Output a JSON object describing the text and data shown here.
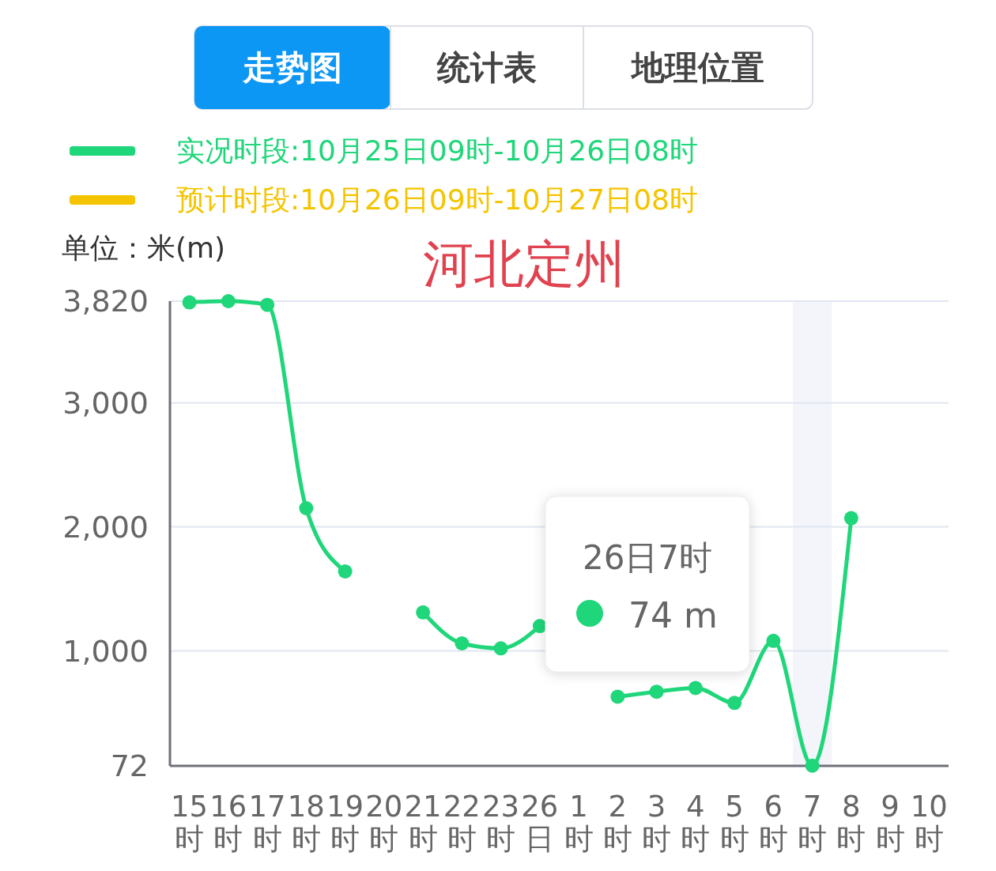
{
  "chart_data": {
    "type": "line",
    "title": "河北定州",
    "ylabel": "单位：米(m)",
    "categories": [
      "15时",
      "16时",
      "17时",
      "18时",
      "19时",
      "20时",
      "21时",
      "22时",
      "23时",
      "26日",
      "1时",
      "2时",
      "3时",
      "4时",
      "5时",
      "6时",
      "7时",
      "8时",
      "9时",
      "10时"
    ],
    "series": [
      {
        "name": "实况时段:10月25日09时-10月26日08时",
        "color": "#1fd67a",
        "values": [
          3810,
          3820,
          3790,
          2150,
          1640,
          null,
          1310,
          1060,
          1020,
          1200,
          null,
          630,
          670,
          700,
          580,
          1080,
          74,
          2070,
          null,
          null
        ]
      },
      {
        "name": "预计时段:10月26日09时-10月27日08时",
        "color": "#f5c400",
        "values": [
          null,
          null,
          null,
          null,
          null,
          null,
          null,
          null,
          null,
          null,
          null,
          null,
          null,
          null,
          null,
          null,
          null,
          null,
          null,
          null
        ]
      }
    ],
    "ylim": [
      72,
      3820
    ],
    "yticks": [
      72,
      {
        "value": 1000,
        "label": "1,000"
      },
      {
        "value": 2000,
        "label": "2,000"
      },
      {
        "value": 3000,
        "label": "3,000"
      },
      {
        "value": 3820,
        "label": "3,820"
      }
    ],
    "grid": "y",
    "legend": "top left",
    "marker": "circle",
    "line_style": "solid",
    "bands": [
      {
        "axis": "x",
        "from": "7时",
        "to": "7时",
        "color": "#f3f5fa"
      }
    ],
    "annotations": [
      "走势图",
      "统计表",
      "地理位置",
      "26日7时\n74 m"
    ]
  }
}
